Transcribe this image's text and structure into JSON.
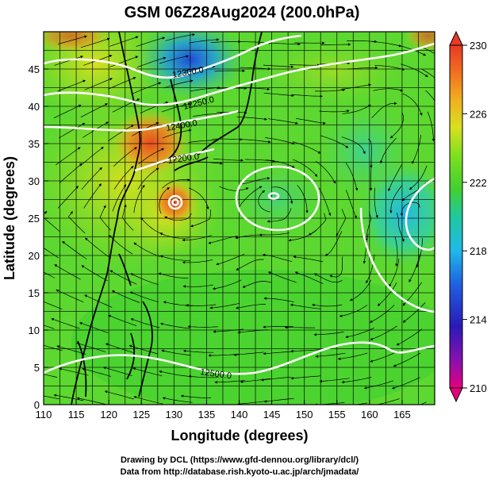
{
  "title": "GSM 06Z28Aug2024 (200.0hPa)",
  "xaxis": {
    "label": "Longitude (degrees)",
    "ticks": [
      "110",
      "115",
      "120",
      "125",
      "130",
      "135",
      "140",
      "145",
      "150",
      "155",
      "160",
      "165"
    ],
    "range": [
      110,
      170
    ]
  },
  "yaxis": {
    "label": "Latitude  (degrees)",
    "ticks": [
      "0",
      "5",
      "10",
      "15",
      "20",
      "25",
      "30",
      "35",
      "40",
      "45"
    ],
    "range": [
      0,
      50
    ]
  },
  "colorbar": {
    "ticks": [
      "230",
      "226",
      "222",
      "218",
      "214",
      "210"
    ],
    "range": [
      210,
      230
    ],
    "colors": [
      "#e6007e",
      "#3a1ab0",
      "#1f5fe0",
      "#1fb8e8",
      "#20c8a0",
      "#4bd42a",
      "#7fe020",
      "#c8e020",
      "#f0b020",
      "#f07020",
      "#e83a28"
    ]
  },
  "contours": {
    "labels": [
      "12300.0",
      "12250.0",
      "12400.0",
      "12200.0",
      "12500.0"
    ]
  },
  "credits": {
    "line1": "Drawing by DCL (https://www.gfd-dennou.org/library/dcl/)",
    "line2": "Data from http://database.rish.kyoto-u.ac.jp/arch/jmadata/"
  }
}
